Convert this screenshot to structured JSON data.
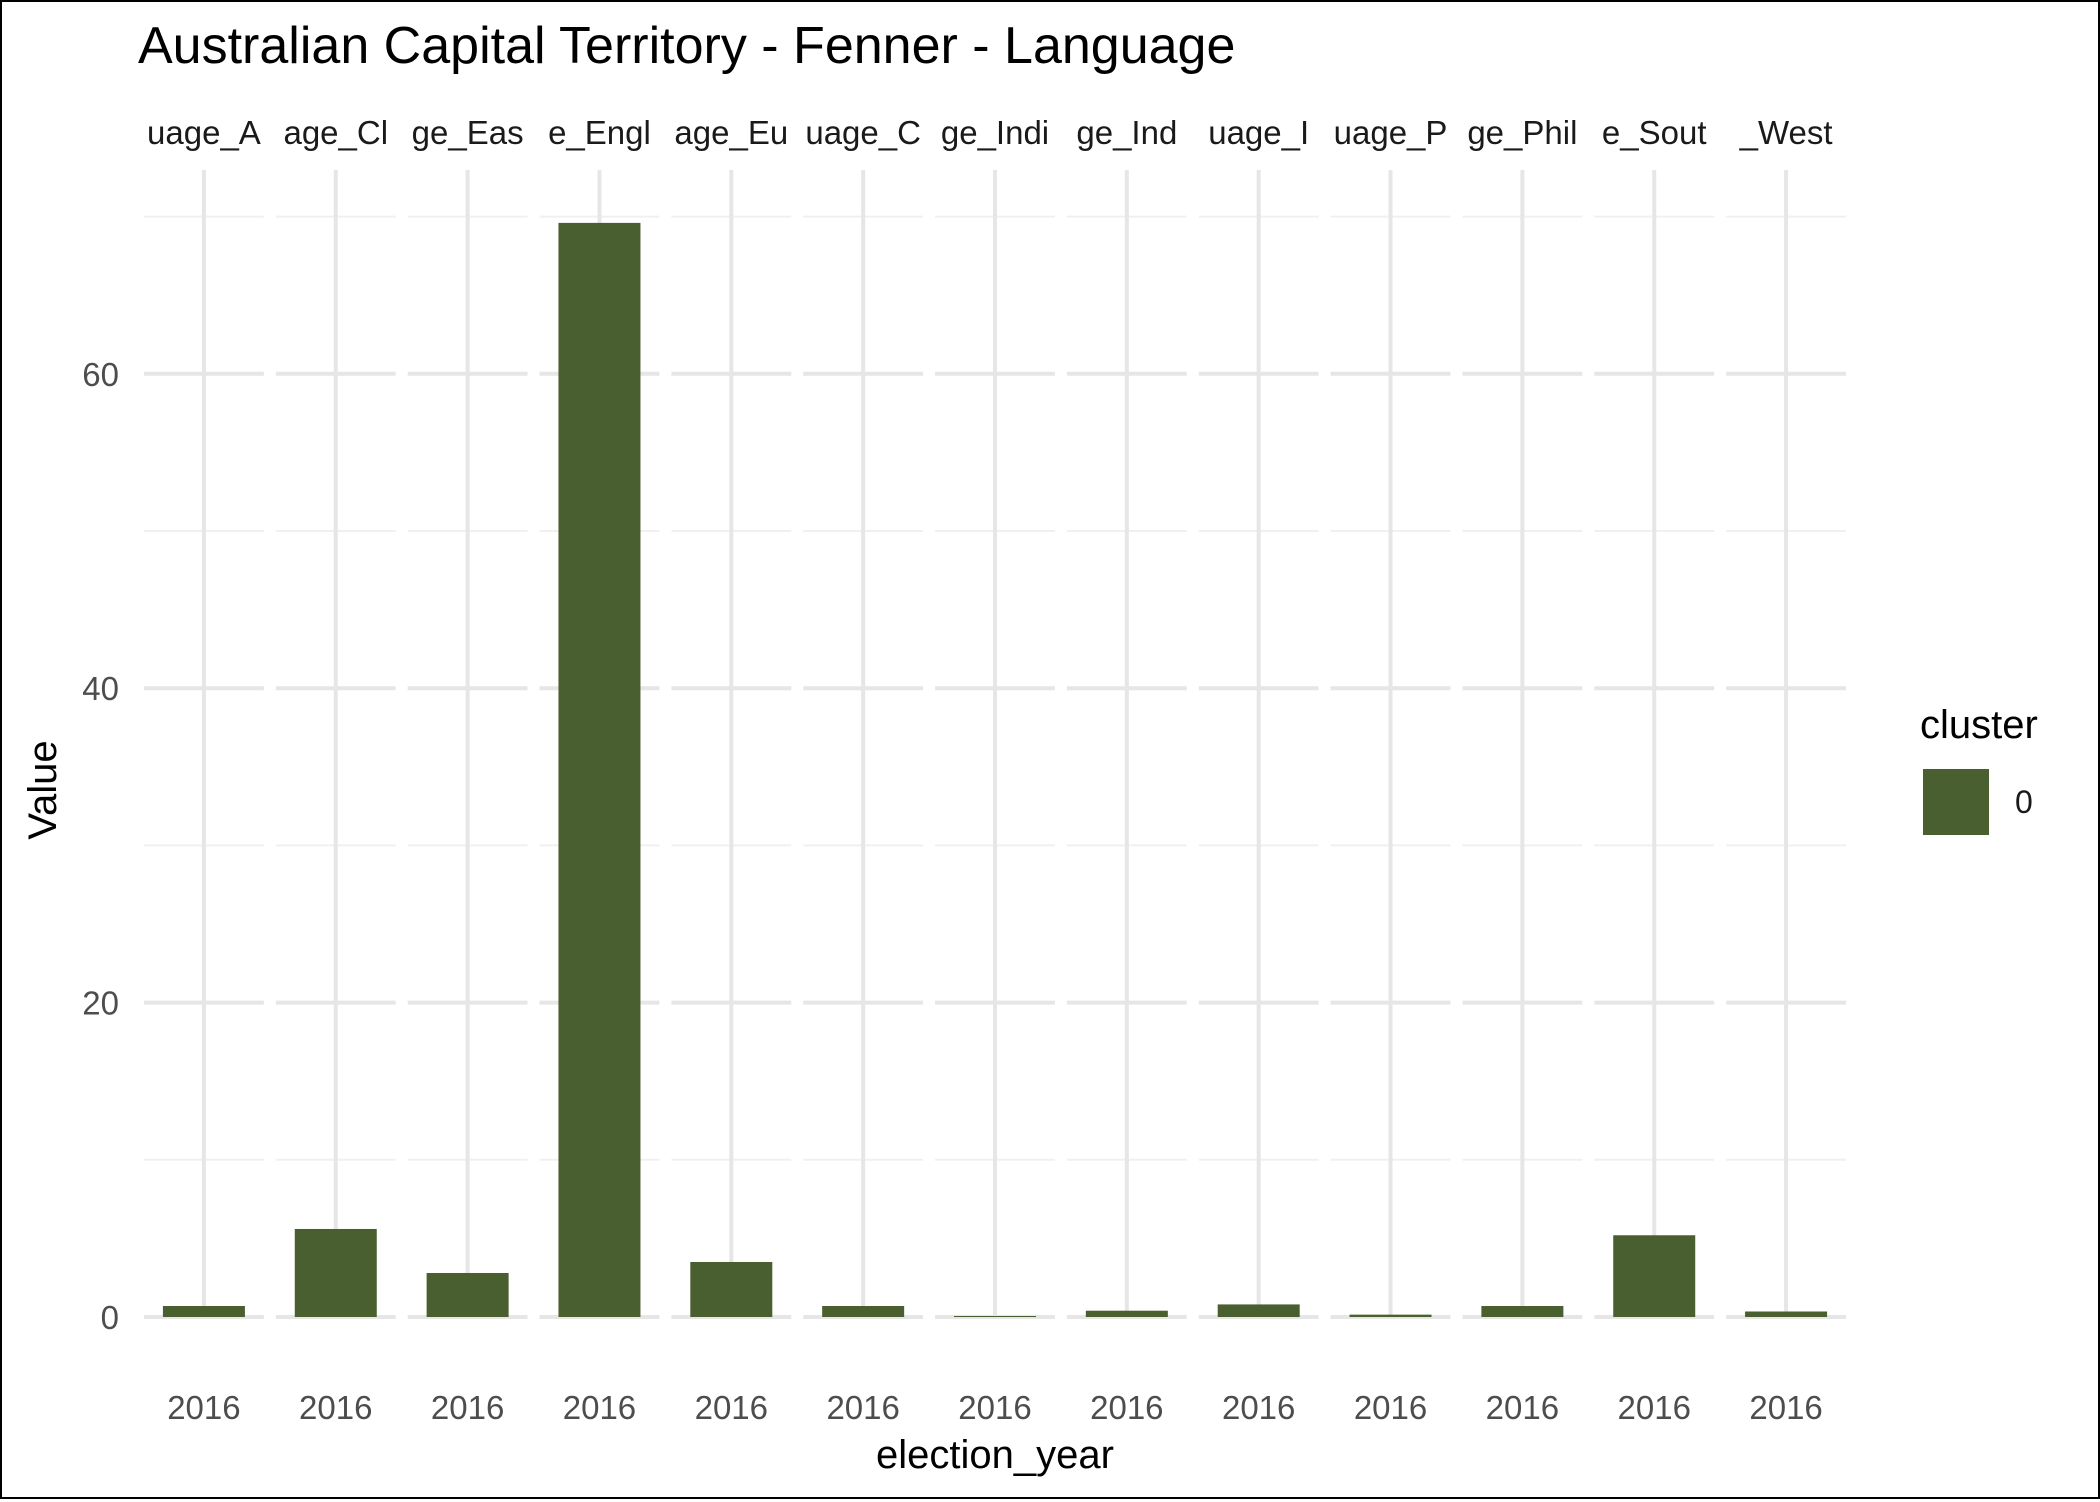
{
  "chart_data": {
    "type": "bar",
    "title": "Australian Capital Territory - Fenner - Language",
    "xlabel": "election_year",
    "ylabel": "Value",
    "ylim": [
      0,
      70
    ],
    "yticks": [
      0,
      20,
      40,
      60
    ],
    "facet_strip_labels": [
      "uage_A",
      "age_Cl",
      "ge_Eas",
      "e_Engl",
      "age_Eu",
      "uage_C",
      "ge_Indi",
      "ge_Ind",
      "uage_I",
      "uage_P",
      "ge_Phil",
      "e_Sout",
      "_West"
    ],
    "categories": [
      "2016",
      "2016",
      "2016",
      "2016",
      "2016",
      "2016",
      "2016",
      "2016",
      "2016",
      "2016",
      "2016",
      "2016",
      "2016"
    ],
    "series": [
      {
        "name": "0",
        "color": "#4a5f30",
        "values": [
          0.7,
          5.6,
          2.8,
          69.6,
          3.5,
          0.7,
          0.05,
          0.4,
          0.8,
          0.15,
          0.7,
          5.2,
          0.35
        ]
      }
    ],
    "legend": {
      "title": "cluster",
      "position": "right",
      "entries": [
        "0"
      ]
    },
    "grid": true
  }
}
